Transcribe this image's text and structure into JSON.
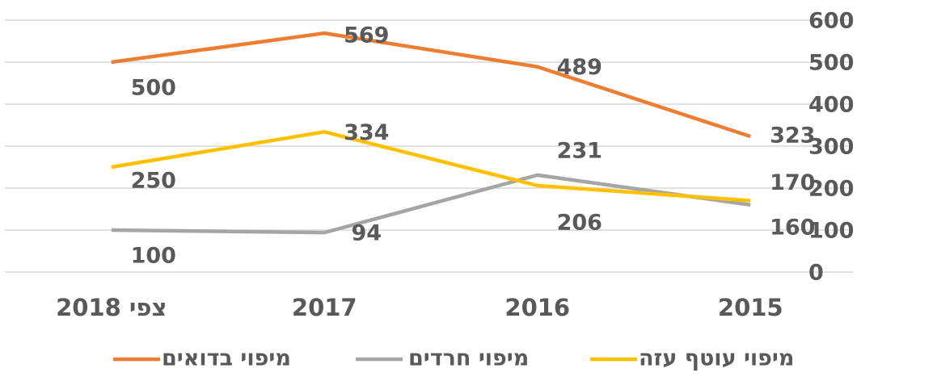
{
  "chart_data": {
    "type": "line",
    "categories": [
      "2015",
      "2016",
      "2017",
      "צפי 2018"
    ],
    "series": [
      {
        "name": "מיפוי בדואים",
        "color": "#ed7d31",
        "values": [
          323,
          489,
          569,
          500
        ]
      },
      {
        "name": "מיפוי חרדים",
        "color": "#a5a5a5",
        "values": [
          160,
          231,
          94,
          100
        ]
      },
      {
        "name": "מיפוי עוטף עזה",
        "color": "#ffc000",
        "values": [
          170,
          206,
          334,
          250
        ]
      }
    ],
    "ylim": [
      0,
      600
    ],
    "yticks": [
      0,
      100,
      200,
      300,
      400,
      500,
      600
    ],
    "grid": true,
    "x_direction": "right-to-left",
    "y_axis_side": "right",
    "legend": "bottom"
  }
}
